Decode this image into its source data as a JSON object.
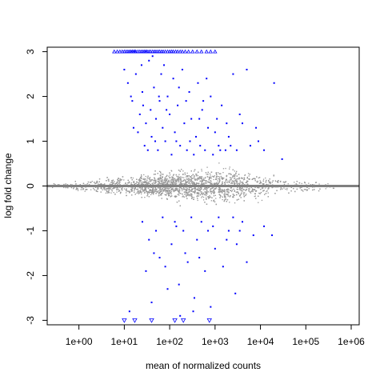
{
  "chart_data": {
    "type": "scatter",
    "title": "",
    "xlabel": "mean of normalized counts",
    "ylabel": "log fold change",
    "x_scale": "log10",
    "xlim": [
      0.2,
      1500000
    ],
    "ylim": [
      -3.1,
      3.1
    ],
    "x_ticks": [
      {
        "value": 1,
        "label": "1e+00"
      },
      {
        "value": 10,
        "label": "1e+01"
      },
      {
        "value": 100,
        "label": "1e+02"
      },
      {
        "value": 1000,
        "label": "1e+03"
      },
      {
        "value": 10000,
        "label": "1e+04"
      },
      {
        "value": 100000,
        "label": "1e+05"
      },
      {
        "value": 1000000,
        "label": "1e+06"
      }
    ],
    "y_ticks": [
      {
        "value": -3,
        "label": "-3"
      },
      {
        "value": -2,
        "label": "-2"
      },
      {
        "value": -1,
        "label": "-1"
      },
      {
        "value": 0,
        "label": "0"
      },
      {
        "value": 1,
        "label": "1"
      },
      {
        "value": 2,
        "label": "2"
      },
      {
        "value": 3,
        "label": "3"
      }
    ],
    "reference_line": {
      "y": 0,
      "color": "#808080"
    },
    "grid": false,
    "legend": "none",
    "colors": {
      "not_significant": "#999999",
      "significant": "#0000ff",
      "clipped": "#0000ff"
    },
    "series": [
      {
        "group": "significant-up",
        "color": "#0000ff",
        "points": [
          [
            10,
            2.6
          ],
          [
            12,
            2.3
          ],
          [
            15,
            1.9
          ],
          [
            18,
            2.5
          ],
          [
            20,
            1.2
          ],
          [
            22,
            1.6
          ],
          [
            25,
            2.1
          ],
          [
            28,
            0.9
          ],
          [
            30,
            1.4
          ],
          [
            35,
            2.8
          ],
          [
            38,
            1.7
          ],
          [
            40,
            1.1
          ],
          [
            45,
            2.2
          ],
          [
            50,
            1.5
          ],
          [
            55,
            0.8
          ],
          [
            60,
            1.9
          ],
          [
            65,
            2.5
          ],
          [
            70,
            1.3
          ],
          [
            80,
            1.0
          ],
          [
            90,
            2.0
          ],
          [
            100,
            1.6
          ],
          [
            110,
            0.7
          ],
          [
            120,
            2.4
          ],
          [
            130,
            1.2
          ],
          [
            150,
            1.8
          ],
          [
            170,
            0.9
          ],
          [
            190,
            2.6
          ],
          [
            210,
            1.4
          ],
          [
            240,
            0.8
          ],
          [
            270,
            2.1
          ],
          [
            300,
            1.5
          ],
          [
            340,
            0.7
          ],
          [
            380,
            1.1
          ],
          [
            420,
            2.3
          ],
          [
            470,
            0.9
          ],
          [
            520,
            1.7
          ],
          [
            600,
            0.8
          ],
          [
            700,
            1.3
          ],
          [
            800,
            2.0
          ],
          [
            900,
            0.7
          ],
          [
            1000,
            1.2
          ],
          [
            1200,
            0.9
          ],
          [
            1400,
            1.8
          ],
          [
            1700,
            0.8
          ],
          [
            2000,
            1.1
          ],
          [
            2500,
            2.5
          ],
          [
            3000,
            0.8
          ],
          [
            4000,
            1.4
          ],
          [
            5000,
            2.6
          ],
          [
            6000,
            0.9
          ],
          [
            8000,
            1.3
          ],
          [
            12000,
            0.8
          ],
          [
            20000,
            2.3
          ],
          [
            30000,
            0.6
          ],
          [
            16,
            1.3
          ],
          [
            24,
            2.7
          ],
          [
            33,
            0.8
          ],
          [
            48,
            1.0
          ],
          [
            75,
            2.7
          ],
          [
            140,
            1.0
          ],
          [
            230,
            1.9
          ],
          [
            450,
            1.5
          ],
          [
            650,
            2.4
          ],
          [
            1100,
            1.5
          ],
          [
            1800,
            1.4
          ],
          [
            3500,
            1.6
          ],
          [
            9000,
            1.0
          ],
          [
            14,
            2.0
          ],
          [
            26,
            1.8
          ],
          [
            42,
            2.9
          ],
          [
            58,
            2.0
          ],
          [
            85,
            1.7
          ],
          [
            160,
            2.2
          ],
          [
            280,
            1.0
          ],
          [
            550,
            1.9
          ],
          [
            1300,
            0.8
          ],
          [
            2200,
            0.9
          ]
        ]
      },
      {
        "group": "significant-down",
        "color": "#0000ff",
        "points": [
          [
            25,
            -0.8
          ],
          [
            30,
            -1.9
          ],
          [
            35,
            -1.2
          ],
          [
            40,
            -2.6
          ],
          [
            50,
            -1.0
          ],
          [
            60,
            -1.6
          ],
          [
            70,
            -0.7
          ],
          [
            90,
            -2.3
          ],
          [
            110,
            -1.3
          ],
          [
            130,
            -0.8
          ],
          [
            160,
            -2.2
          ],
          [
            200,
            -1.0
          ],
          [
            250,
            -1.7
          ],
          [
            300,
            -0.7
          ],
          [
            350,
            -2.5
          ],
          [
            400,
            -1.2
          ],
          [
            500,
            -0.8
          ],
          [
            600,
            -1.9
          ],
          [
            700,
            -1.0
          ],
          [
            800,
            -2.7
          ],
          [
            1000,
            -1.4
          ],
          [
            1200,
            -0.7
          ],
          [
            1500,
            -1.8
          ],
          [
            2000,
            -1.0
          ],
          [
            2500,
            -0.7
          ],
          [
            3000,
            -1.3
          ],
          [
            4000,
            -0.8
          ],
          [
            5000,
            -1.7
          ],
          [
            7000,
            -1.1
          ],
          [
            12000,
            -0.9
          ],
          [
            18000,
            -1.1
          ],
          [
            45,
            -1.5
          ],
          [
            80,
            -1.8
          ],
          [
            140,
            -0.9
          ],
          [
            220,
            -1.5
          ],
          [
            450,
            -1.6
          ],
          [
            900,
            -0.9
          ],
          [
            1800,
            -1.2
          ],
          [
            3500,
            -1.0
          ],
          [
            2800,
            -2.4
          ],
          [
            13,
            -2.8
          ],
          [
            170,
            -2.9
          ],
          [
            330,
            -2.8
          ]
        ]
      },
      {
        "group": "clipped-up",
        "color": "#0000ff",
        "shape": "triangle-up",
        "points": [
          [
            6,
            3
          ],
          [
            7,
            3
          ],
          [
            8,
            3
          ],
          [
            9,
            3
          ],
          [
            10,
            3
          ],
          [
            11,
            3
          ],
          [
            12,
            3
          ],
          [
            13,
            3
          ],
          [
            14,
            3
          ],
          [
            15,
            3
          ],
          [
            16,
            3
          ],
          [
            17,
            3
          ],
          [
            18,
            3
          ],
          [
            20,
            3
          ],
          [
            22,
            3
          ],
          [
            24,
            3
          ],
          [
            26,
            3
          ],
          [
            28,
            3
          ],
          [
            30,
            3
          ],
          [
            32,
            3
          ],
          [
            35,
            3
          ],
          [
            38,
            3
          ],
          [
            42,
            3
          ],
          [
            46,
            3
          ],
          [
            50,
            3
          ],
          [
            55,
            3
          ],
          [
            60,
            3
          ],
          [
            66,
            3
          ],
          [
            72,
            3
          ],
          [
            80,
            3
          ],
          [
            90,
            3
          ],
          [
            100,
            3
          ],
          [
            110,
            3
          ],
          [
            120,
            3
          ],
          [
            135,
            3
          ],
          [
            150,
            3
          ],
          [
            170,
            3
          ],
          [
            190,
            3
          ],
          [
            220,
            3
          ],
          [
            260,
            3
          ],
          [
            320,
            3
          ],
          [
            400,
            3
          ],
          [
            500,
            3
          ],
          [
            650,
            3
          ],
          [
            800,
            3
          ],
          [
            1000,
            3
          ]
        ]
      },
      {
        "group": "clipped-down",
        "color": "#0000ff",
        "shape": "triangle-down",
        "points": [
          [
            10,
            -3
          ],
          [
            17,
            -3
          ],
          [
            40,
            -3
          ],
          [
            130,
            -3
          ],
          [
            200,
            -3
          ],
          [
            750,
            -3
          ]
        ]
      },
      {
        "group": "not-significant",
        "color": "#999999",
        "pattern": "dense cloud centered on 0, widening from x=0.2 to x≈1000 then narrowing to x≈500000",
        "points": []
      }
    ]
  }
}
